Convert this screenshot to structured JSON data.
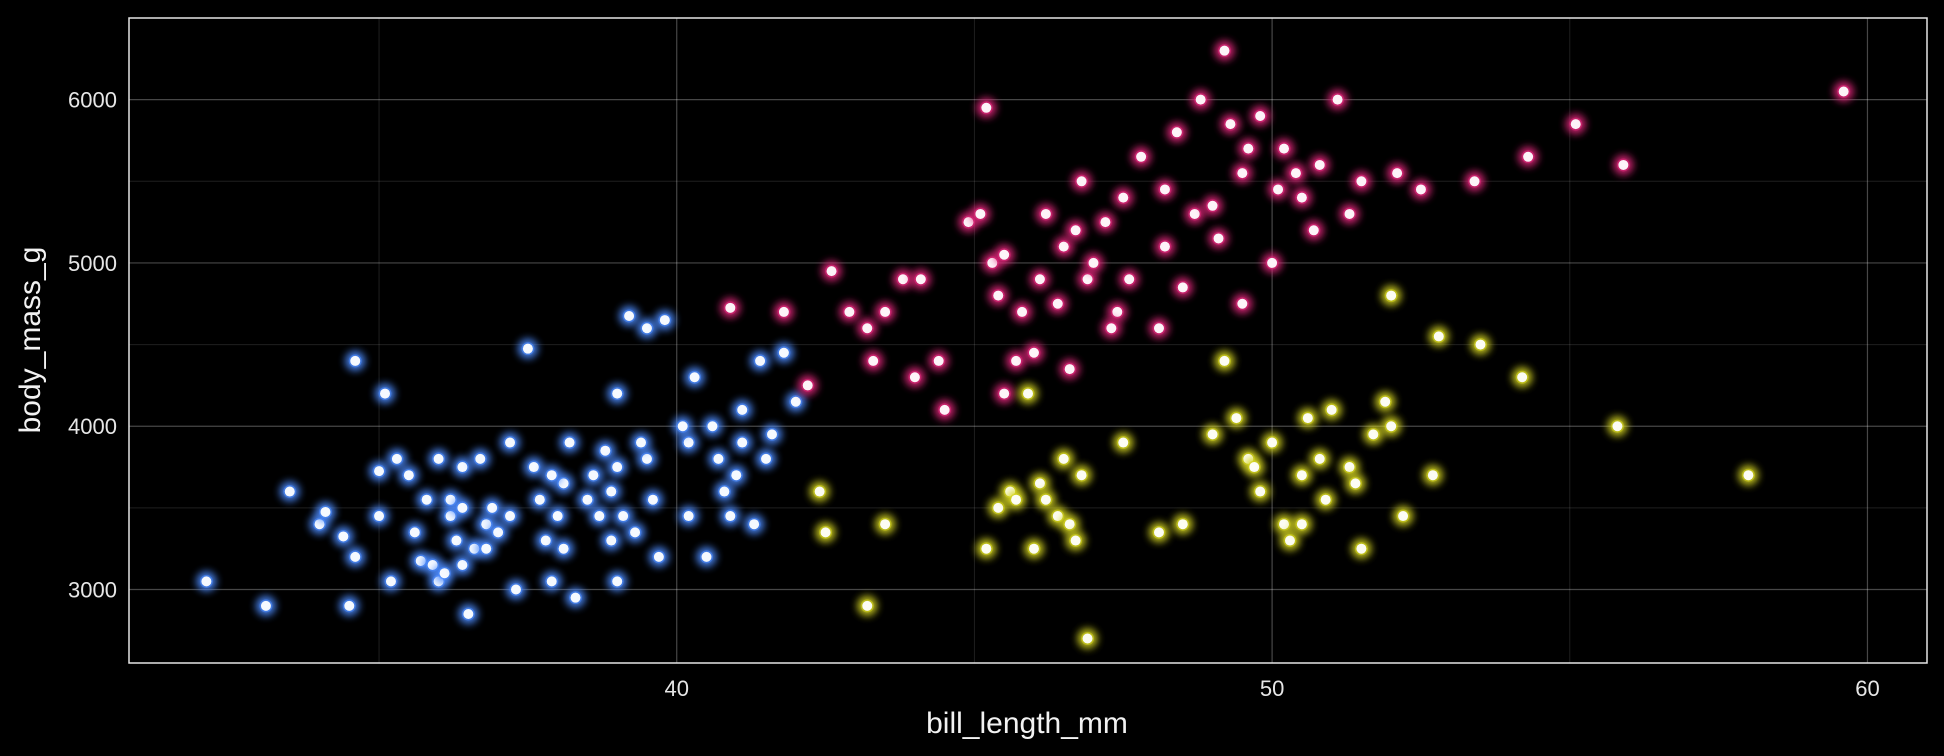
{
  "chart_data": {
    "type": "scatter",
    "title": "",
    "xlabel": "bill_length_mm",
    "ylabel": "body_mass_g",
    "xlim": [
      30.8,
      61.0
    ],
    "ylim": [
      2550,
      6500
    ],
    "x_ticks": [
      40,
      50,
      60
    ],
    "y_ticks": [
      3000,
      4000,
      5000,
      6000
    ],
    "x_tick_labels": [
      "40",
      "50",
      "60"
    ],
    "y_tick_labels": [
      "3000",
      "4000",
      "5000",
      "6000"
    ],
    "grid": true,
    "legend": "none",
    "background": "#000000",
    "series": [
      {
        "color": "#4d8cff",
        "points": [
          [
            32.1,
            3050
          ],
          [
            33.1,
            2900
          ],
          [
            33.5,
            3600
          ],
          [
            34.0,
            3400
          ],
          [
            34.1,
            3475
          ],
          [
            34.4,
            3325
          ],
          [
            34.5,
            2900
          ],
          [
            34.6,
            3200
          ],
          [
            34.6,
            4400
          ],
          [
            35.0,
            3450
          ],
          [
            35.0,
            3725
          ],
          [
            35.1,
            4200
          ],
          [
            35.2,
            3050
          ],
          [
            35.3,
            3800
          ],
          [
            35.5,
            3700
          ],
          [
            35.6,
            3350
          ],
          [
            35.7,
            3175
          ],
          [
            35.8,
            3550
          ],
          [
            35.9,
            3150
          ],
          [
            36.0,
            3800
          ],
          [
            36.0,
            3050
          ],
          [
            36.1,
            3100
          ],
          [
            36.2,
            3450
          ],
          [
            36.2,
            3550
          ],
          [
            36.3,
            3300
          ],
          [
            36.4,
            3150
          ],
          [
            36.4,
            3750
          ],
          [
            36.5,
            2850
          ],
          [
            36.6,
            3250
          ],
          [
            36.7,
            3800
          ],
          [
            36.8,
            3400
          ],
          [
            36.9,
            3500
          ],
          [
            37.0,
            3350
          ],
          [
            37.2,
            3450
          ],
          [
            37.3,
            3000
          ],
          [
            37.5,
            4475
          ],
          [
            37.6,
            3750
          ],
          [
            37.7,
            3550
          ],
          [
            37.8,
            3300
          ],
          [
            37.9,
            3050
          ],
          [
            38.0,
            3450
          ],
          [
            38.1,
            3250
          ],
          [
            38.1,
            3650
          ],
          [
            38.2,
            3900
          ],
          [
            38.3,
            2950
          ],
          [
            38.5,
            3550
          ],
          [
            38.6,
            3700
          ],
          [
            38.7,
            3450
          ],
          [
            38.8,
            3850
          ],
          [
            38.9,
            3600
          ],
          [
            39.0,
            3050
          ],
          [
            39.0,
            3750
          ],
          [
            39.1,
            3450
          ],
          [
            39.2,
            4675
          ],
          [
            39.3,
            3350
          ],
          [
            39.5,
            3800
          ],
          [
            39.5,
            4600
          ],
          [
            39.6,
            3550
          ],
          [
            39.7,
            3200
          ],
          [
            39.8,
            4650
          ],
          [
            40.2,
            3450
          ],
          [
            40.2,
            3900
          ],
          [
            40.3,
            4300
          ],
          [
            40.5,
            3200
          ],
          [
            40.6,
            4000
          ],
          [
            40.7,
            3800
          ],
          [
            40.8,
            3600
          ],
          [
            40.9,
            3450
          ],
          [
            41.1,
            3900
          ],
          [
            41.1,
            4100
          ],
          [
            41.3,
            3400
          ],
          [
            41.4,
            4400
          ],
          [
            41.5,
            3800
          ],
          [
            41.6,
            3950
          ],
          [
            41.8,
            4450
          ],
          [
            42.0,
            4150
          ],
          [
            36.8,
            3250
          ],
          [
            37.9,
            3700
          ],
          [
            39.4,
            3900
          ],
          [
            40.1,
            4000
          ],
          [
            38.9,
            3300
          ],
          [
            37.2,
            3900
          ],
          [
            36.4,
            3500
          ],
          [
            39.0,
            4200
          ],
          [
            41.0,
            3700
          ]
        ]
      },
      {
        "color": "#e0287a",
        "points": [
          [
            40.9,
            4725
          ],
          [
            41.8,
            4700
          ],
          [
            42.2,
            4250
          ],
          [
            42.6,
            4950
          ],
          [
            42.9,
            4700
          ],
          [
            43.2,
            4600
          ],
          [
            43.3,
            4400
          ],
          [
            43.5,
            4700
          ],
          [
            43.8,
            4900
          ],
          [
            44.0,
            4300
          ],
          [
            44.4,
            4400
          ],
          [
            44.5,
            4100
          ],
          [
            44.9,
            5250
          ],
          [
            45.1,
            5300
          ],
          [
            45.2,
            5950
          ],
          [
            45.3,
            5000
          ],
          [
            45.4,
            4800
          ],
          [
            45.5,
            4200
          ],
          [
            45.7,
            4400
          ],
          [
            45.8,
            4700
          ],
          [
            46.1,
            4900
          ],
          [
            46.2,
            5300
          ],
          [
            46.4,
            4750
          ],
          [
            46.5,
            5100
          ],
          [
            46.6,
            4350
          ],
          [
            46.8,
            5500
          ],
          [
            46.9,
            4900
          ],
          [
            47.2,
            5250
          ],
          [
            47.4,
            4700
          ],
          [
            47.5,
            5400
          ],
          [
            47.6,
            4900
          ],
          [
            47.8,
            5650
          ],
          [
            48.1,
            4600
          ],
          [
            48.2,
            5100
          ],
          [
            48.4,
            5800
          ],
          [
            48.5,
            4850
          ],
          [
            48.7,
            5300
          ],
          [
            48.8,
            6000
          ],
          [
            49.0,
            5350
          ],
          [
            49.1,
            5150
          ],
          [
            49.2,
            6300
          ],
          [
            49.3,
            5850
          ],
          [
            49.5,
            5550
          ],
          [
            49.6,
            5700
          ],
          [
            49.8,
            5900
          ],
          [
            50.0,
            5000
          ],
          [
            50.2,
            5700
          ],
          [
            50.4,
            5550
          ],
          [
            50.5,
            5400
          ],
          [
            50.7,
            5200
          ],
          [
            50.8,
            5600
          ],
          [
            51.1,
            6000
          ],
          [
            51.3,
            5300
          ],
          [
            51.5,
            5500
          ],
          [
            52.1,
            5550
          ],
          [
            52.5,
            5450
          ],
          [
            53.4,
            5500
          ],
          [
            54.3,
            5650
          ],
          [
            55.1,
            5850
          ],
          [
            55.9,
            5600
          ],
          [
            59.6,
            6050
          ],
          [
            46.0,
            4450
          ],
          [
            47.0,
            5000
          ],
          [
            45.5,
            5050
          ],
          [
            49.5,
            4750
          ],
          [
            48.2,
            5450
          ],
          [
            50.1,
            5450
          ],
          [
            44.1,
            4900
          ],
          [
            46.7,
            5200
          ],
          [
            47.3,
            4600
          ]
        ]
      },
      {
        "color": "#d6d620",
        "points": [
          [
            42.4,
            3600
          ],
          [
            42.5,
            3350
          ],
          [
            43.2,
            2900
          ],
          [
            43.5,
            3400
          ],
          [
            45.2,
            3250
          ],
          [
            45.4,
            3500
          ],
          [
            45.6,
            3600
          ],
          [
            45.7,
            3550
          ],
          [
            46.0,
            3250
          ],
          [
            46.1,
            3650
          ],
          [
            46.4,
            3450
          ],
          [
            46.5,
            3800
          ],
          [
            46.6,
            3400
          ],
          [
            46.7,
            3300
          ],
          [
            46.8,
            3700
          ],
          [
            46.9,
            2700
          ],
          [
            47.5,
            3900
          ],
          [
            48.1,
            3350
          ],
          [
            48.5,
            3400
          ],
          [
            49.0,
            3950
          ],
          [
            49.2,
            4400
          ],
          [
            49.4,
            4050
          ],
          [
            49.6,
            3800
          ],
          [
            49.8,
            3600
          ],
          [
            50.0,
            3900
          ],
          [
            50.2,
            3400
          ],
          [
            50.3,
            3300
          ],
          [
            50.5,
            3700
          ],
          [
            50.6,
            4050
          ],
          [
            50.8,
            3800
          ],
          [
            50.9,
            3550
          ],
          [
            51.0,
            4100
          ],
          [
            51.3,
            3750
          ],
          [
            51.4,
            3650
          ],
          [
            51.5,
            3250
          ],
          [
            51.7,
            3950
          ],
          [
            52.0,
            4000
          ],
          [
            52.0,
            4800
          ],
          [
            52.2,
            3450
          ],
          [
            52.7,
            3700
          ],
          [
            52.8,
            4550
          ],
          [
            53.5,
            4500
          ],
          [
            54.2,
            4300
          ],
          [
            55.8,
            4000
          ],
          [
            58.0,
            3700
          ],
          [
            50.5,
            3400
          ],
          [
            49.7,
            3750
          ],
          [
            51.9,
            4150
          ],
          [
            46.2,
            3550
          ],
          [
            45.9,
            4200
          ]
        ]
      }
    ]
  }
}
